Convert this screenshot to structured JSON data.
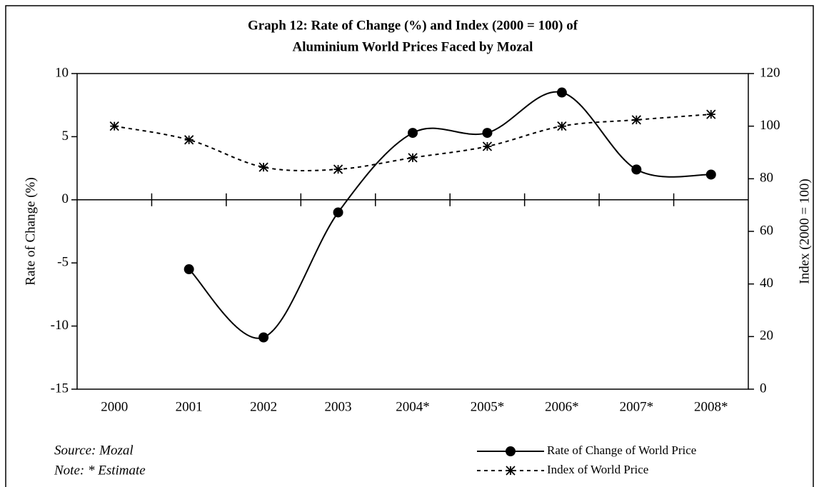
{
  "chart_data": {
    "type": "line",
    "title": [
      "Graph 12: Rate of Change (%) and Index (2000 = 100) of",
      "Aluminium World Prices Faced by Mozal"
    ],
    "categories": [
      "2000",
      "2001",
      "2002",
      "2003",
      "2004*",
      "2005*",
      "2006*",
      "2007*",
      "2008*"
    ],
    "series": [
      {
        "name": "Rate of Change of World Price",
        "color": "#000000",
        "values": [
          null,
          -5.5,
          -10.9,
          -1.0,
          5.3,
          5.3,
          8.5,
          2.4,
          2.0
        ]
      },
      {
        "name": "Index of World Price",
        "color": "#000000",
        "axis": "y2",
        "values": [
          100,
          94.8,
          84.4,
          83.6,
          88,
          92.3,
          100,
          102.4,
          104.5
        ]
      }
    ],
    "ylabel": "Rate of Change (%)",
    "y2label": "Index (2000 = 100)",
    "ylim": [
      -15,
      10
    ],
    "yticks": [
      -15,
      -10,
      -5,
      0,
      5,
      10
    ],
    "y2lim": [
      0,
      120
    ],
    "y2ticks": [
      0,
      20,
      40,
      60,
      80,
      100,
      120
    ],
    "source": "Source: Mozal",
    "note": "Note: * Estimate",
    "legend": "lower right"
  }
}
